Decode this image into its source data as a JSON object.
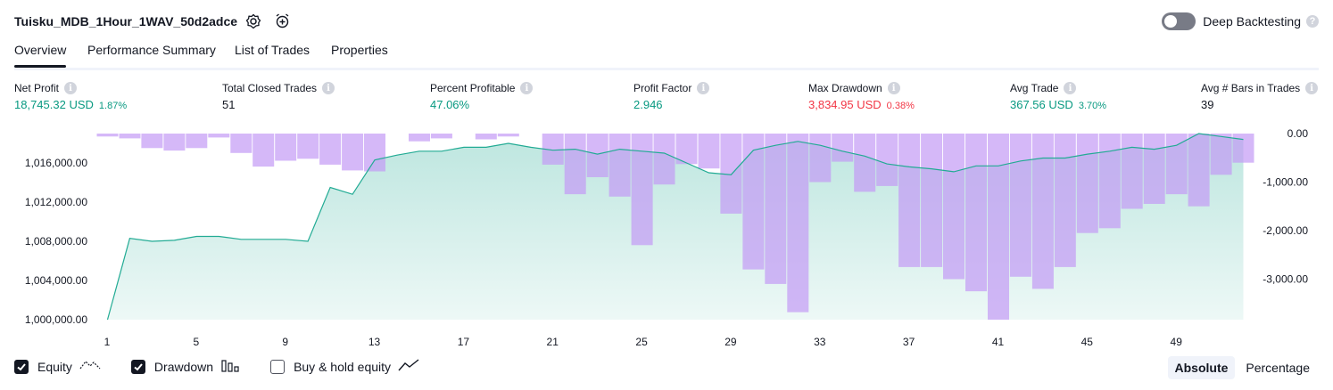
{
  "header": {
    "strategy_name": "Tuisku_MDB_1Hour_1WAV_50d2adce",
    "deep_backtesting_label": "Deep Backtesting",
    "deep_backtesting_enabled": false,
    "help_glyph": "?"
  },
  "tabs": [
    {
      "label": "Overview",
      "active": true
    },
    {
      "label": "Performance Summary",
      "active": false
    },
    {
      "label": "List of Trades",
      "active": false
    },
    {
      "label": "Properties",
      "active": false
    }
  ],
  "stats": [
    {
      "label": "Net Profit",
      "value": "18,745.32 USD",
      "pct": "1.87%",
      "color": "#089981"
    },
    {
      "label": "Total Closed Trades",
      "value": "51",
      "pct": "",
      "color": "#131722"
    },
    {
      "label": "Percent Profitable",
      "value": "47.06%",
      "pct": "",
      "color": "#089981"
    },
    {
      "label": "Profit Factor",
      "value": "2.946",
      "pct": "",
      "color": "#089981"
    },
    {
      "label": "Max Drawdown",
      "value": "3,834.95 USD",
      "pct": "0.38%",
      "color": "#f23645"
    },
    {
      "label": "Avg Trade",
      "value": "367.56 USD",
      "pct": "3.70%",
      "color": "#089981"
    },
    {
      "label": "Avg # Bars in Trades",
      "value": "39",
      "pct": "",
      "color": "#131722"
    }
  ],
  "info_glyph": "i",
  "chart_data": {
    "type": "area",
    "x_tick_labels": [
      "1",
      "5",
      "9",
      "13",
      "17",
      "21",
      "25",
      "29",
      "33",
      "37",
      "41",
      "45",
      "49"
    ],
    "left_axis": {
      "ticks": [
        "1,016,000.00",
        "1,012,000.00",
        "1,008,000.00",
        "1,004,000.00",
        "1,000,000.00"
      ],
      "range": [
        1000000,
        1019000
      ]
    },
    "right_axis": {
      "ticks": [
        "0.00",
        "-1,000.00",
        "-2,000.00",
        "-3,000.00"
      ],
      "range": [
        -3834.95,
        0
      ]
    },
    "series": [
      {
        "name": "Equity",
        "color": "#22ab94",
        "values": [
          1000000,
          1008300,
          1008000,
          1008100,
          1008500,
          1008500,
          1008200,
          1008200,
          1008200,
          1008000,
          1013500,
          1012800,
          1016300,
          1016800,
          1017200,
          1017200,
          1017600,
          1017600,
          1018000,
          1017600,
          1017300,
          1017400,
          1016900,
          1017400,
          1017200,
          1017000,
          1016000,
          1015000,
          1014800,
          1017300,
          1017800,
          1018200,
          1017800,
          1017200,
          1016700,
          1015900,
          1015600,
          1015400,
          1015100,
          1015700,
          1015700,
          1016200,
          1016500,
          1016500,
          1016900,
          1017200,
          1017600,
          1017400,
          1017800,
          1019000,
          1018700,
          1018400
        ]
      },
      {
        "name": "Drawdown",
        "color": "#c39af5",
        "values": [
          -60,
          -100,
          -300,
          -350,
          -300,
          -80,
          -400,
          -680,
          -560,
          -520,
          -640,
          -760,
          -780,
          0,
          -160,
          -100,
          0,
          -120,
          -60,
          0,
          -640,
          -1250,
          -900,
          -1300,
          -2300,
          -1050,
          -630,
          -720,
          -1650,
          -2800,
          -3100,
          -3680,
          -1000,
          -580,
          -1200,
          -1080,
          -2750,
          -2750,
          -3000,
          -3250,
          -3834.95,
          -2950,
          -3200,
          -2750,
          -2050,
          -1950,
          -1550,
          -1450,
          -1250,
          -1500,
          -850,
          -600
        ]
      }
    ]
  },
  "legend": [
    {
      "label": "Equity",
      "checked": true
    },
    {
      "label": "Drawdown",
      "checked": true
    },
    {
      "label": "Buy & hold equity",
      "checked": false
    }
  ],
  "modes": [
    {
      "label": "Absolute",
      "active": true
    },
    {
      "label": "Percentage",
      "active": false
    }
  ]
}
